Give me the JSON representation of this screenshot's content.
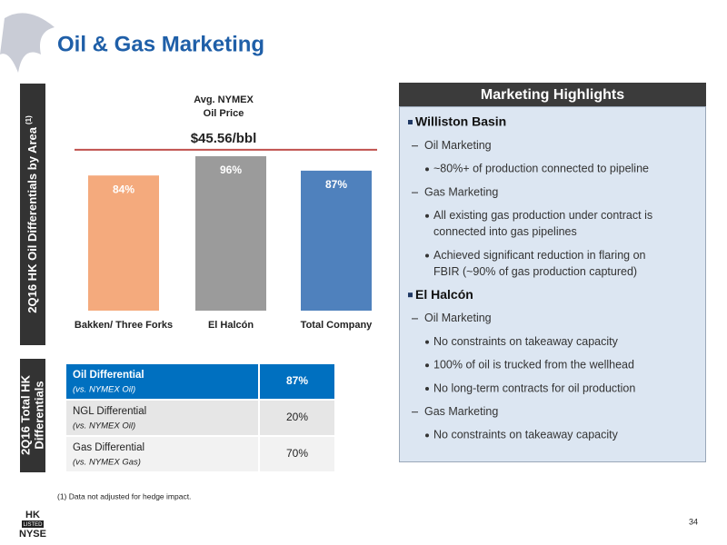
{
  "header": {
    "title": "Oil & Gas Marketing"
  },
  "chart_data": {
    "type": "bar",
    "side_label": "2Q16 HK Oil Differentials by Area",
    "side_label_note": "(1)",
    "categories": [
      "Bakken/ Three Forks",
      "El Halcón",
      "Total Company"
    ],
    "values": [
      84,
      96,
      87
    ],
    "value_labels": [
      "84%",
      "96%",
      "87%"
    ],
    "colors": [
      "#f4aa7d",
      "#9b9b9b",
      "#4f81bd"
    ],
    "ylim": [
      0,
      105
    ],
    "reference_line": {
      "value": 100,
      "title": [
        "Avg. NYMEX",
        "Oil Price"
      ],
      "label": "$45.56/bbl",
      "color": "#c0504d"
    }
  },
  "table": {
    "side_label": [
      "2Q16 Total HK",
      "Differentials"
    ],
    "rows": [
      [
        "Oil Differential",
        "(vs. NYMEX Oil)",
        "87%"
      ],
      [
        "NGL Differential",
        "(vs. NYMEX Oil)",
        "20%"
      ],
      [
        "Gas Differential",
        "(vs. NYMEX Gas)",
        "70%"
      ]
    ]
  },
  "highlights": {
    "title": "Marketing Highlights",
    "items": [
      {
        "level": 0,
        "lines": [
          "Williston Basin"
        ]
      },
      {
        "level": 1,
        "lines": [
          "Oil Marketing"
        ]
      },
      {
        "level": 2,
        "lines": [
          "~80%+ of production connected to pipeline"
        ]
      },
      {
        "level": 1,
        "lines": [
          "Gas Marketing"
        ]
      },
      {
        "level": 2,
        "lines": [
          "All existing gas production under contract is",
          "connected into gas pipelines"
        ]
      },
      {
        "level": 2,
        "lines": [
          "Achieved significant reduction in flaring on",
          "FBIR (~90% of gas production captured)"
        ]
      },
      {
        "level": 0,
        "lines": [
          "El Halcón"
        ]
      },
      {
        "level": 1,
        "lines": [
          "Oil Marketing"
        ]
      },
      {
        "level": 2,
        "lines": [
          "No constraints on takeaway capacity"
        ]
      },
      {
        "level": 2,
        "lines": [
          "100% of oil is trucked from the wellhead"
        ]
      },
      {
        "level": 2,
        "lines": [
          "No long-term contracts for oil production"
        ]
      },
      {
        "level": 1,
        "lines": [
          "Gas Marketing"
        ]
      },
      {
        "level": 2,
        "lines": [
          "No constraints on takeaway capacity"
        ]
      }
    ]
  },
  "footnote": "(1) Data not adjusted for hedge impact.",
  "logo": [
    "HK",
    "LISTED",
    "NYSE"
  ],
  "page_number": "34"
}
